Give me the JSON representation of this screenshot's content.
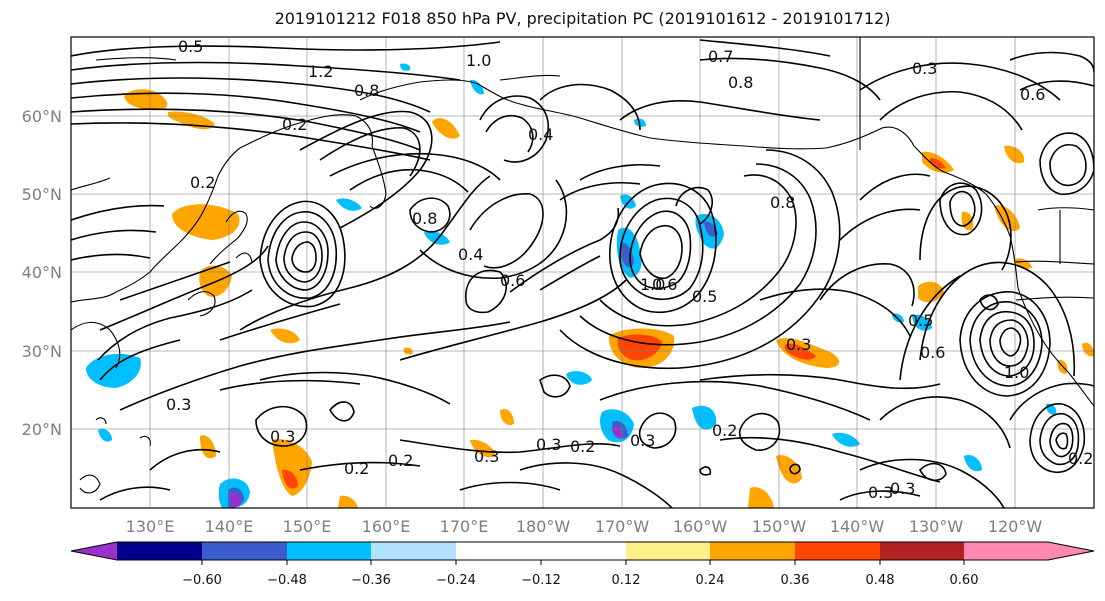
{
  "title": "2019101212 F018 850 hPa PV, precipitation PC (2019101612 - 2019101712)",
  "map": {
    "lat_labels": [
      "60°N",
      "50°N",
      "40°N",
      "30°N",
      "20°N"
    ],
    "lon_labels": [
      "130°E",
      "140°E",
      "150°E",
      "160°E",
      "170°E",
      "180°W",
      "170°W",
      "160°W",
      "150°W",
      "140°W",
      "130°W",
      "120°W"
    ],
    "contour_labels": [
      "0.5",
      "1.2",
      "1.0",
      "0.7",
      "0.3",
      "0.8",
      "0.8",
      "0.2",
      "0.2",
      "0.4",
      "0.6",
      "0.6",
      "0.5",
      "0.5",
      "0.3",
      "0.3",
      "0.2",
      "0.2",
      "0.3",
      "0.3",
      "0.2",
      "0.3",
      "0.2",
      "0.3",
      "0.3",
      "1.0",
      "0.8",
      "0.4",
      "0.6",
      "0.8",
      "1.0",
      "0.6",
      "0.3",
      "0.2"
    ]
  },
  "colorbar": {
    "ticks": [
      "−0.60",
      "−0.48",
      "−0.36",
      "−0.24",
      "−0.12",
      "0.12",
      "0.24",
      "0.36",
      "0.48",
      "0.60"
    ],
    "colors": [
      "#9932cc",
      "#00008b",
      "#3a5fcd",
      "#00bfff",
      "#b0e2ff",
      "#ffffff",
      "#fff08a",
      "#ffa500",
      "#ff4500",
      "#b22222",
      "#ff89b0"
    ]
  }
}
